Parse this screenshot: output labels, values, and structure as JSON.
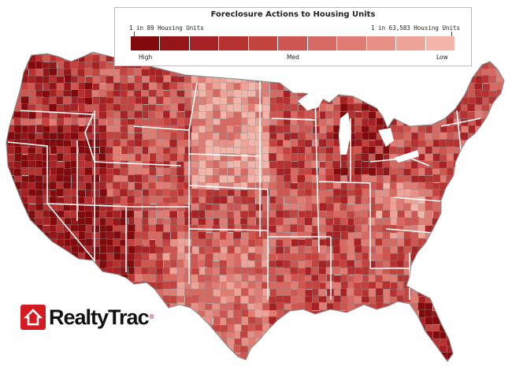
{
  "legend": {
    "title": "Foreclosure Actions to Housing Units",
    "left_label": "1 in 89 Housing Units",
    "right_label": "1 in 63,583 Housing Units",
    "scale_high": "High",
    "scale_med": "Med",
    "scale_low": "Low",
    "colors": [
      "#820a0c",
      "#951518",
      "#a72224",
      "#b63230",
      "#c3433f",
      "#cd5651",
      "#d66962",
      "#df7d74",
      "#e69086",
      "#eda398",
      "#f2b5aa"
    ]
  },
  "map": {
    "border_color": "#ffffff",
    "county_line_color": "#8f8f8f",
    "land_base_color": "#c9574f"
  },
  "logo": {
    "text": "RealtyTrac",
    "registered": "®"
  }
}
